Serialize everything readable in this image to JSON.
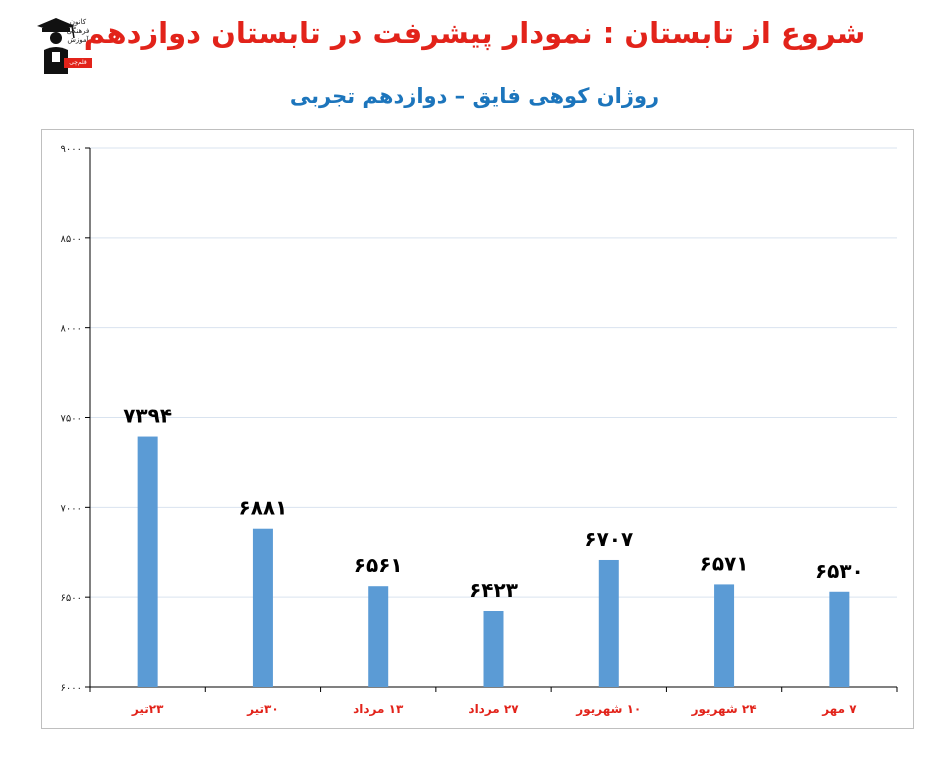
{
  "header": {
    "title": "شروع از تابستان : نمودار پیشرفت در تابستان دوازدهم",
    "subtitle": "روژان کوهی فایق – دوازدهم تجربی"
  },
  "logo": {
    "lines": [
      "کانون",
      "فرهنگی",
      "آموزش"
    ],
    "tag": "قلم‌چی"
  },
  "colors": {
    "title": "#e2231a",
    "subtitle": "#1c75bc",
    "bar": "#5b9bd5",
    "xlabel": "#e2231a",
    "grid": "#d9e3ef",
    "axis": "#000000"
  },
  "chart_data": {
    "type": "bar",
    "categories": [
      "۲۳تیر",
      "۳۰تیر",
      "۱۳ مرداد",
      "۲۷ مرداد",
      "۱۰ شهریور",
      "۲۴ شهریور",
      "۷ مهر"
    ],
    "values": [
      7394,
      6881,
      6561,
      6423,
      6707,
      6571,
      6530
    ],
    "data_labels": [
      "۷۳۹۴",
      "۶۸۸۱",
      "۶۵۶۱",
      "۶۴۲۳",
      "۶۷۰۷",
      "۶۵۷۱",
      "۶۵۳۰"
    ],
    "y_ticks": [
      6000,
      6500,
      7000,
      7500,
      8000,
      8500,
      9000
    ],
    "y_tick_labels": [
      "۶۰۰۰",
      "۶۵۰۰",
      "۷۰۰۰",
      "۷۵۰۰",
      "۸۰۰۰",
      "۸۵۰۰",
      "۹۰۰۰"
    ],
    "ylim": [
      6000,
      9000
    ],
    "grid": true,
    "legend": "none"
  }
}
